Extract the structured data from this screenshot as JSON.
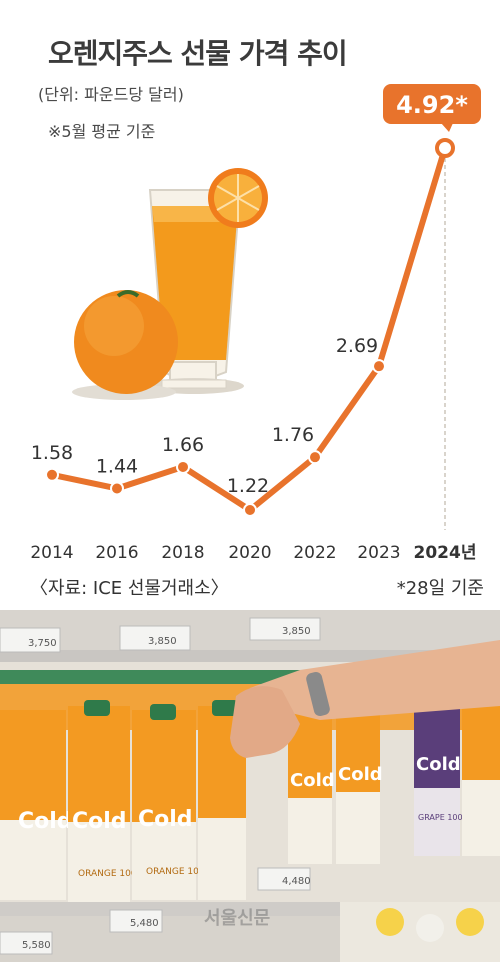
{
  "header": {
    "title": "오렌지주스 선물 가격 추이",
    "unit": "(단위: 파운드당 달러)",
    "note": "※5월 평균 기준"
  },
  "footer": {
    "source": "〈자료: ICE 선물거래소〉",
    "asof": "*28일 기준"
  },
  "watermark": "서울신문",
  "colors": {
    "accent": "#e8732c",
    "text": "#333333"
  },
  "photo": {
    "price_tags": [
      "3,750",
      "3,850",
      "3,850",
      "4,480",
      "5,480",
      "5,580"
    ],
    "carton_brand": "Cold",
    "carton_label": "ORANGE 100%",
    "carton_label_grape": "GRAPE 100%"
  },
  "chart_data": {
    "type": "line",
    "title": "오렌지주스 선물 가격 추이",
    "ylabel": "파운드당 달러",
    "categories": [
      "2014",
      "2016",
      "2018",
      "2020",
      "2022",
      "2023",
      "2024년"
    ],
    "values": [
      1.58,
      1.44,
      1.66,
      1.22,
      1.76,
      2.69,
      4.92
    ],
    "value_labels": [
      "1.58",
      "1.44",
      "1.66",
      "1.22",
      "1.76",
      "2.69",
      "4.92*"
    ],
    "highlight_index": 6,
    "grid": false
  }
}
